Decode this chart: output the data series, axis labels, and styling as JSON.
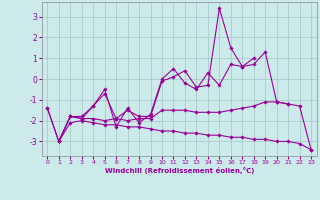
{
  "xlabel": "Windchill (Refroidissement éolien,°C)",
  "bg_color": "#cceaea",
  "grid_color": "#aacccc",
  "line_color": "#990099",
  "xlim": [
    -0.5,
    23.5
  ],
  "ylim": [
    -3.7,
    3.7
  ],
  "yticks": [
    -3,
    -2,
    -1,
    0,
    1,
    2,
    3
  ],
  "xticks": [
    0,
    1,
    2,
    3,
    4,
    5,
    6,
    7,
    8,
    9,
    10,
    11,
    12,
    13,
    14,
    15,
    16,
    17,
    18,
    19,
    20,
    21,
    22,
    23
  ],
  "series": [
    [
      null,
      -3.0,
      -1.8,
      -1.8,
      -1.3,
      -0.7,
      -1.9,
      -1.5,
      -1.8,
      -1.8,
      -0.1,
      0.1,
      0.4,
      -0.4,
      -0.3,
      3.4,
      1.5,
      0.6,
      0.7,
      1.3,
      -1.1,
      -1.2,
      null,
      null
    ],
    [
      null,
      -3.0,
      -1.8,
      -1.9,
      -1.3,
      -0.5,
      -2.3,
      -1.4,
      -2.1,
      -1.7,
      -0.0,
      0.5,
      -0.2,
      -0.5,
      0.3,
      -0.3,
      0.7,
      0.6,
      1.0,
      null,
      null,
      null,
      null,
      null
    ],
    [
      -1.4,
      -3.0,
      -1.8,
      -1.9,
      -1.9,
      -2.0,
      -1.9,
      -2.0,
      -1.9,
      -1.9,
      -1.5,
      -1.5,
      -1.5,
      -1.6,
      -1.6,
      -1.6,
      -1.5,
      -1.4,
      -1.3,
      -1.1,
      -1.1,
      -1.2,
      -1.3,
      -3.4
    ],
    [
      -1.4,
      -3.0,
      -2.1,
      -2.0,
      -2.1,
      -2.2,
      -2.2,
      -2.3,
      -2.3,
      -2.4,
      -2.5,
      -2.5,
      -2.6,
      -2.6,
      -2.7,
      -2.7,
      -2.8,
      -2.8,
      -2.9,
      -2.9,
      -3.0,
      -3.0,
      -3.1,
      -3.4
    ]
  ]
}
